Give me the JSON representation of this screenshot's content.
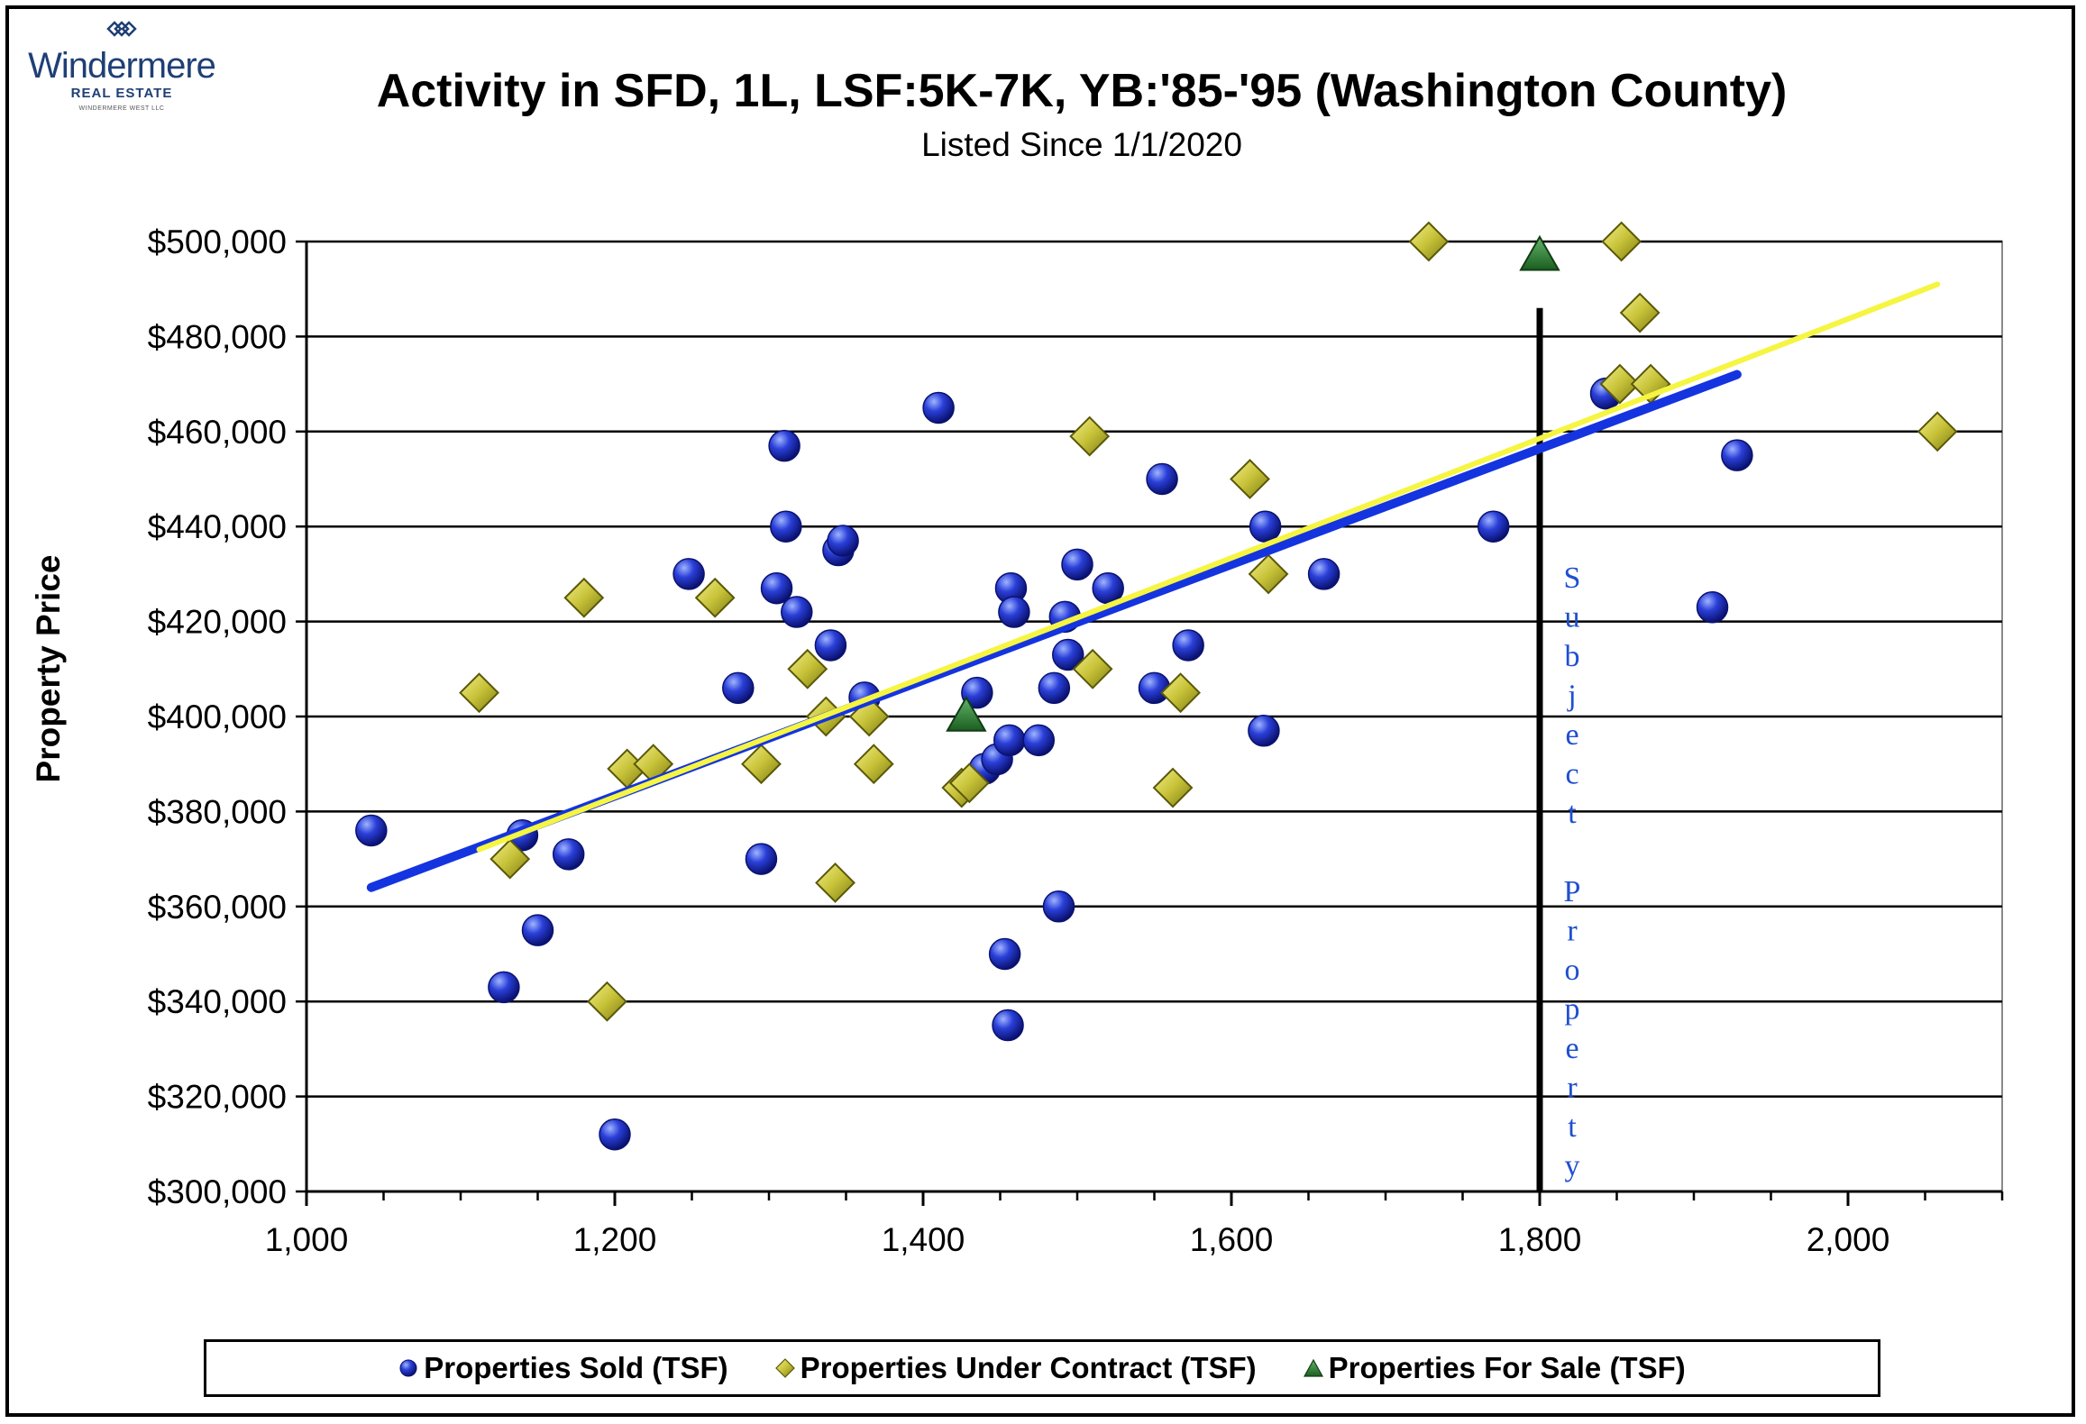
{
  "logo": {
    "brand": "Windermere",
    "sub": "REAL ESTATE",
    "tiny": "WINDERMERE WEST LLC"
  },
  "colors": {
    "sold": "#1f2fbf",
    "under_contract": "#c8c43a",
    "for_sale": "#2e7d32",
    "trend_sold": "#1434e0",
    "trend_contract": "#f5f542",
    "subject_line": "#000000",
    "subject_text": "#1f4fd0"
  },
  "chart_data": {
    "type": "scatter",
    "title": "Activity in SFD, 1L, LSF:5K-7K, YB:'85-'95 (Washington County)",
    "subtitle": "Listed Since 1/1/2020",
    "xlabel": "",
    "ylabel": "Property Price",
    "xlim": [
      1000,
      2100
    ],
    "ylim": [
      300000,
      500000
    ],
    "x_ticks": [
      1000,
      1200,
      1400,
      1600,
      1800,
      2000
    ],
    "x_tick_labels": [
      "1,000",
      "1,200",
      "1,400",
      "1,600",
      "1,800",
      "2,000"
    ],
    "y_ticks": [
      300000,
      320000,
      340000,
      360000,
      380000,
      400000,
      420000,
      440000,
      460000,
      480000,
      500000
    ],
    "y_tick_labels": [
      "$300,000",
      "$320,000",
      "$340,000",
      "$360,000",
      "$380,000",
      "$400,000",
      "$420,000",
      "$440,000",
      "$460,000",
      "$480,000",
      "$500,000"
    ],
    "grid": "horizontal",
    "legend_position": "bottom",
    "series": [
      {
        "name": "Properties Sold  (TSF)",
        "marker": "circle",
        "points": [
          [
            1042,
            376000
          ],
          [
            1140,
            375000
          ],
          [
            1150,
            355000
          ],
          [
            1128,
            343000
          ],
          [
            1170,
            371000
          ],
          [
            1200,
            312000
          ],
          [
            1248,
            430000
          ],
          [
            1280,
            406000
          ],
          [
            1295,
            370000
          ],
          [
            1305,
            427000
          ],
          [
            1310,
            457000
          ],
          [
            1311,
            440000
          ],
          [
            1318,
            422000
          ],
          [
            1340,
            415000
          ],
          [
            1345,
            435000
          ],
          [
            1348,
            437000
          ],
          [
            1362,
            404000
          ],
          [
            1410,
            465000
          ],
          [
            1435,
            405000
          ],
          [
            1440,
            389000
          ],
          [
            1448,
            391000
          ],
          [
            1453,
            350000
          ],
          [
            1455,
            335000
          ],
          [
            1456,
            395000
          ],
          [
            1457,
            427000
          ],
          [
            1459,
            422000
          ],
          [
            1475,
            395000
          ],
          [
            1485,
            406000
          ],
          [
            1488,
            360000
          ],
          [
            1492,
            421000
          ],
          [
            1494,
            413000
          ],
          [
            1500,
            432000
          ],
          [
            1520,
            427000
          ],
          [
            1550,
            406000
          ],
          [
            1555,
            450000
          ],
          [
            1572,
            415000
          ],
          [
            1621,
            397000
          ],
          [
            1622,
            440000
          ],
          [
            1660,
            430000
          ],
          [
            1770,
            440000
          ],
          [
            1843,
            468000
          ],
          [
            1912,
            423000
          ],
          [
            1928,
            455000
          ]
        ]
      },
      {
        "name": "Properties Under Contract  (TSF)",
        "marker": "diamond",
        "points": [
          [
            1112,
            405000
          ],
          [
            1132,
            370000
          ],
          [
            1180,
            425000
          ],
          [
            1195,
            340000
          ],
          [
            1208,
            389000
          ],
          [
            1225,
            390000
          ],
          [
            1265,
            425000
          ],
          [
            1295,
            390000
          ],
          [
            1325,
            410000
          ],
          [
            1337,
            400000
          ],
          [
            1343,
            365000
          ],
          [
            1365,
            400000
          ],
          [
            1368,
            390000
          ],
          [
            1425,
            385000
          ],
          [
            1430,
            386000
          ],
          [
            1508,
            459000
          ],
          [
            1510,
            410000
          ],
          [
            1562,
            385000
          ],
          [
            1567,
            405000
          ],
          [
            1612,
            450000
          ],
          [
            1624,
            430000
          ],
          [
            1728,
            500000
          ],
          [
            1853,
            500000
          ],
          [
            1852,
            470000
          ],
          [
            1865,
            485000
          ],
          [
            1872,
            470000
          ],
          [
            2058,
            460000
          ]
        ]
      },
      {
        "name": "Properties For Sale  (TSF)",
        "marker": "triangle",
        "points": [
          [
            1428,
            400000
          ],
          [
            1800,
            497000
          ]
        ]
      }
    ],
    "trend_lines": [
      {
        "series": "Properties Sold  (TSF)",
        "from": [
          1042,
          364000
        ],
        "to": [
          1928,
          472000
        ]
      },
      {
        "series": "Properties Under Contract  (TSF)",
        "from": [
          1112,
          372000
        ],
        "to": [
          2058,
          491000
        ]
      }
    ],
    "annotations": [
      {
        "type": "vertical_line",
        "x": 1800,
        "y_top": 486000,
        "text": "Subject Property"
      }
    ]
  }
}
